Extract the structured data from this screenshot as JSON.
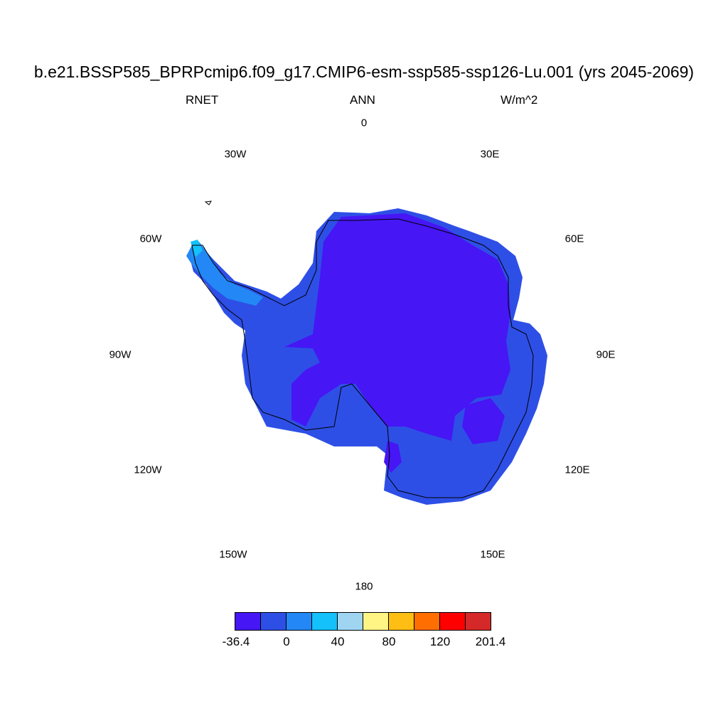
{
  "header": {
    "title": "b.e21.BSSP585_BPRPcmip6.f09_g17.CMIP6-esm-ssp585-ssp126-Lu.001 (yrs 2045-2069)",
    "variable": "RNET",
    "season": "ANN",
    "units": "W/m^2"
  },
  "longitude_labels": {
    "lon_0": "0",
    "lon_30e": "30E",
    "lon_60e": "60E",
    "lon_90e": "90E",
    "lon_120e": "120E",
    "lon_150e": "150E",
    "lon_180": "180",
    "lon_150w": "150W",
    "lon_120w": "120W",
    "lon_90w": "90W",
    "lon_60w": "60W",
    "lon_30w": "30W"
  },
  "colorbar": {
    "colors": [
      "#4616f5",
      "#2e4fe6",
      "#2388f5",
      "#14c1fa",
      "#a0d5f2",
      "#fff585",
      "#ffbe14",
      "#ff6e00",
      "#ff0000",
      "#d52828"
    ],
    "labels": {
      "min": "-36.4",
      "t0": "0",
      "t40": "40",
      "t80": "80",
      "t120": "120",
      "max": "201.4"
    }
  },
  "map_colors": {
    "continent_base": "#2e4fe6",
    "interior_low": "#4616f5",
    "peninsula": "#2388f5",
    "coastline": "#000000"
  }
}
